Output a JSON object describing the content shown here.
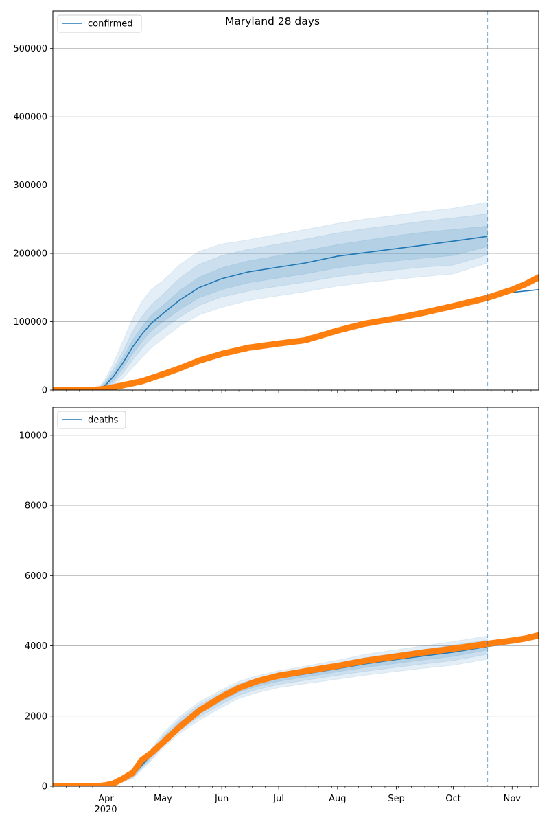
{
  "title": "Maryland 28 days",
  "colors": {
    "model": "#1f77b4",
    "observed": "#ff7f0e",
    "band": "#1f77b4",
    "forecast_line": "#1f77b4",
    "grid": "#b0b0b0",
    "axes": "#000000"
  },
  "x_axis": {
    "year_label": "2020",
    "month_ticks": [
      {
        "label": "Apr",
        "date": "2020-04-01"
      },
      {
        "label": "May",
        "date": "2020-05-01"
      },
      {
        "label": "Jun",
        "date": "2020-06-01"
      },
      {
        "label": "Jul",
        "date": "2020-07-01"
      },
      {
        "label": "Aug",
        "date": "2020-08-01"
      },
      {
        "label": "Sep",
        "date": "2020-09-01"
      },
      {
        "label": "Oct",
        "date": "2020-10-01"
      },
      {
        "label": "Nov",
        "date": "2020-11-01"
      }
    ],
    "range": [
      "2020-03-04",
      "2020-11-15"
    ],
    "forecast_start": "2020-10-19"
  },
  "chart_data": [
    {
      "type": "line",
      "legend": "confirmed",
      "legend_position": "upper-left",
      "ylim": [
        0,
        555000
      ],
      "yticks": [
        0,
        100000,
        200000,
        300000,
        400000,
        500000
      ],
      "grid": "horizontal",
      "model": {
        "x": [
          "2020-03-04",
          "2020-03-28",
          "2020-04-01",
          "2020-04-05",
          "2020-04-10",
          "2020-04-15",
          "2020-04-20",
          "2020-04-25",
          "2020-05-01",
          "2020-05-10",
          "2020-05-20",
          "2020-06-01",
          "2020-06-15",
          "2020-07-01",
          "2020-07-15",
          "2020-08-01",
          "2020-08-15",
          "2020-09-01",
          "2020-09-15",
          "2020-10-01",
          "2020-10-19",
          "2020-10-25",
          "2020-11-01",
          "2020-11-08",
          "2020-11-15"
        ],
        "y": [
          0,
          0,
          8000,
          20000,
          40000,
          63000,
          82000,
          98000,
          112000,
          132000,
          150000,
          163000,
          173000,
          180000,
          186000,
          196000,
          201000,
          207000,
          212000,
          218000,
          225000,
          141000,
          143000,
          145000,
          147000
        ],
        "band_inner": {
          "upper": [
            0,
            1000,
            11000,
            26000,
            48000,
            73000,
            93000,
            110000,
            124000,
            146000,
            165000,
            179000,
            189000,
            197000,
            204000,
            213000,
            219000,
            226000,
            231000,
            235000,
            240000
          ],
          "lower": [
            0,
            0,
            5000,
            14000,
            32000,
            53000,
            71000,
            87000,
            100000,
            118000,
            135000,
            147000,
            157000,
            164000,
            170000,
            179000,
            184000,
            189000,
            193000,
            197000,
            210000
          ]
        },
        "band_mid": {
          "upper": [
            0,
            2000,
            14000,
            32000,
            57000,
            86000,
            108000,
            125000,
            140000,
            164000,
            184000,
            197000,
            206000,
            214000,
            221000,
            230000,
            236000,
            242000,
            247000,
            252000,
            258000
          ],
          "lower": [
            0,
            0,
            3000,
            10000,
            25000,
            44000,
            61000,
            76000,
            89000,
            107000,
            124000,
            136000,
            145000,
            152000,
            158000,
            166000,
            171000,
            176000,
            180000,
            183000,
            198000
          ]
        },
        "band_outer": {
          "upper": [
            0,
            3000,
            18000,
            40000,
            72000,
            105000,
            130000,
            148000,
            160000,
            184000,
            203000,
            214000,
            220000,
            228000,
            235000,
            244000,
            250000,
            256000,
            261000,
            266000,
            275000
          ],
          "lower": [
            0,
            0,
            1000,
            6000,
            17000,
            33000,
            48000,
            62000,
            75000,
            94000,
            110000,
            121000,
            131000,
            138000,
            144000,
            152000,
            157000,
            162000,
            166000,
            170000,
            186000
          ]
        }
      },
      "observed": {
        "x": [
          "2020-03-04",
          "2020-03-25",
          "2020-04-01",
          "2020-04-10",
          "2020-04-20",
          "2020-05-01",
          "2020-05-10",
          "2020-05-20",
          "2020-06-01",
          "2020-06-15",
          "2020-07-01",
          "2020-07-15",
          "2020-08-01",
          "2020-08-15",
          "2020-09-01",
          "2020-09-15",
          "2020-10-01",
          "2020-10-19",
          "2020-11-01",
          "2020-11-08",
          "2020-11-15"
        ],
        "y": [
          0,
          0,
          2000,
          7000,
          13000,
          23000,
          32000,
          43000,
          53000,
          62000,
          68000,
          73000,
          87000,
          97000,
          105000,
          113000,
          123000,
          135000,
          147000,
          155000,
          165000
        ]
      }
    },
    {
      "type": "line",
      "legend": "deaths",
      "legend_position": "upper-left",
      "ylim": [
        0,
        10800
      ],
      "yticks": [
        0,
        2000,
        4000,
        6000,
        8000,
        10000
      ],
      "grid": "horizontal",
      "model": {
        "x": [
          "2020-03-04",
          "2020-03-28",
          "2020-04-05",
          "2020-04-15",
          "2020-04-25",
          "2020-05-01",
          "2020-05-10",
          "2020-05-20",
          "2020-06-01",
          "2020-06-10",
          "2020-06-20",
          "2020-07-01",
          "2020-07-15",
          "2020-08-01",
          "2020-08-15",
          "2020-09-01",
          "2020-09-15",
          "2020-10-01",
          "2020-10-19",
          "2020-11-01",
          "2020-11-08",
          "2020-11-15"
        ],
        "y": [
          0,
          0,
          60,
          300,
          900,
          1300,
          1750,
          2150,
          2520,
          2770,
          2940,
          3080,
          3200,
          3350,
          3480,
          3610,
          3710,
          3820,
          3980,
          4080,
          4140,
          4220
        ],
        "band_inner": {
          "upper": [
            0,
            0,
            70,
            330,
            960,
            1370,
            1830,
            2240,
            2600,
            2850,
            3010,
            3150,
            3270,
            3430,
            3570,
            3700,
            3810,
            3920,
            4070
          ],
          "lower": [
            0,
            0,
            50,
            270,
            840,
            1230,
            1670,
            2060,
            2430,
            2680,
            2850,
            2990,
            3110,
            3260,
            3380,
            3500,
            3600,
            3700,
            3880
          ]
        },
        "band_mid": {
          "upper": [
            0,
            0,
            80,
            360,
            1020,
            1440,
            1910,
            2320,
            2680,
            2920,
            3080,
            3220,
            3340,
            3510,
            3660,
            3790,
            3900,
            4020,
            4170
          ],
          "lower": [
            0,
            0,
            40,
            240,
            790,
            1160,
            1590,
            1970,
            2340,
            2590,
            2760,
            2900,
            3020,
            3160,
            3270,
            3390,
            3480,
            3580,
            3760
          ]
        },
        "band_outer": {
          "upper": [
            0,
            0,
            90,
            390,
            1080,
            1510,
            1990,
            2400,
            2750,
            2990,
            3150,
            3290,
            3420,
            3590,
            3750,
            3890,
            4000,
            4120,
            4280
          ],
          "lower": [
            0,
            0,
            30,
            210,
            740,
            1090,
            1510,
            1880,
            2250,
            2500,
            2670,
            2810,
            2920,
            3050,
            3160,
            3270,
            3360,
            3450,
            3620
          ]
        }
      },
      "observed": {
        "x": [
          "2020-03-04",
          "2020-03-28",
          "2020-04-01",
          "2020-04-05",
          "2020-04-10",
          "2020-04-15",
          "2020-04-20",
          "2020-04-25",
          "2020-05-01",
          "2020-05-10",
          "2020-05-20",
          "2020-06-01",
          "2020-06-10",
          "2020-06-20",
          "2020-07-01",
          "2020-07-15",
          "2020-08-01",
          "2020-08-15",
          "2020-09-01",
          "2020-09-15",
          "2020-10-01",
          "2020-10-19",
          "2020-11-01",
          "2020-11-08",
          "2020-11-15"
        ],
        "y": [
          0,
          0,
          30,
          80,
          220,
          380,
          750,
          950,
          1250,
          1700,
          2150,
          2550,
          2800,
          3000,
          3150,
          3280,
          3430,
          3570,
          3700,
          3810,
          3920,
          4060,
          4150,
          4210,
          4300
        ]
      }
    }
  ]
}
